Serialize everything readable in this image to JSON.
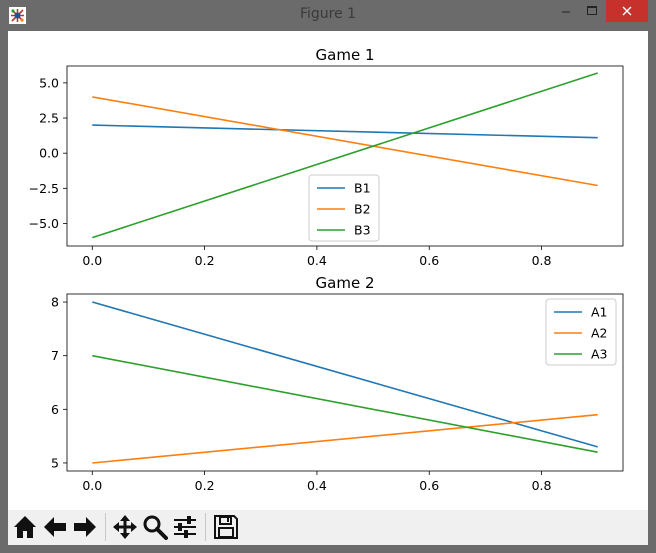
{
  "window": {
    "title": "Figure 1",
    "icon": "matplotlib-figure-icon",
    "controls": {
      "minimize": "minimize-icon",
      "maximize": "maximize-icon",
      "close": "close-icon"
    }
  },
  "colors": {
    "series1": "#1f77b4",
    "series2": "#ff7f0e",
    "series3": "#2ca02c",
    "close_button": "#c7312b"
  },
  "toolbar": {
    "buttons": [
      {
        "name": "home-button",
        "icon": "home-icon"
      },
      {
        "name": "back-button",
        "icon": "arrow-left-icon"
      },
      {
        "name": "forward-button",
        "icon": "arrow-right-icon"
      },
      {
        "name": "pan-button",
        "icon": "move-icon"
      },
      {
        "name": "zoom-button",
        "icon": "magnifier-icon"
      },
      {
        "name": "subplots-button",
        "icon": "sliders-icon"
      },
      {
        "name": "save-button",
        "icon": "floppy-disk-icon"
      }
    ]
  },
  "chart_data": [
    {
      "type": "line",
      "title": "Game 1",
      "xlim": [
        -0.045,
        0.945
      ],
      "ylim": [
        -6.6,
        6.2
      ],
      "xticks": [
        0.0,
        0.2,
        0.4,
        0.6,
        0.8
      ],
      "xtick_labels": [
        "0.0",
        "0.2",
        "0.4",
        "0.6",
        "0.8"
      ],
      "yticks": [
        5.0,
        2.5,
        0.0,
        -2.5,
        -5.0
      ],
      "ytick_labels": [
        "5.0",
        "2.5",
        "0.0",
        "−2.5",
        "−5.0"
      ],
      "legend": "lower-center",
      "series": [
        {
          "name": "B1",
          "x": [
            0.0,
            0.9
          ],
          "y": [
            2.0,
            1.1
          ]
        },
        {
          "name": "B2",
          "x": [
            0.0,
            0.9
          ],
          "y": [
            4.0,
            -2.3
          ]
        },
        {
          "name": "B3",
          "x": [
            0.0,
            0.9
          ],
          "y": [
            -6.0,
            5.7
          ]
        }
      ]
    },
    {
      "type": "line",
      "title": "Game 2",
      "xlim": [
        -0.045,
        0.945
      ],
      "ylim": [
        4.85,
        8.15
      ],
      "xticks": [
        0.0,
        0.2,
        0.4,
        0.6,
        0.8
      ],
      "xtick_labels": [
        "0.0",
        "0.2",
        "0.4",
        "0.6",
        "0.8"
      ],
      "yticks": [
        8,
        7,
        6,
        5
      ],
      "ytick_labels": [
        "8",
        "7",
        "6",
        "5"
      ],
      "legend": "upper-right",
      "series": [
        {
          "name": "A1",
          "x": [
            0.0,
            0.9
          ],
          "y": [
            8.0,
            5.3
          ]
        },
        {
          "name": "A2",
          "x": [
            0.0,
            0.9
          ],
          "y": [
            5.0,
            5.9
          ]
        },
        {
          "name": "A3",
          "x": [
            0.0,
            0.9
          ],
          "y": [
            7.0,
            5.2
          ]
        }
      ]
    }
  ]
}
